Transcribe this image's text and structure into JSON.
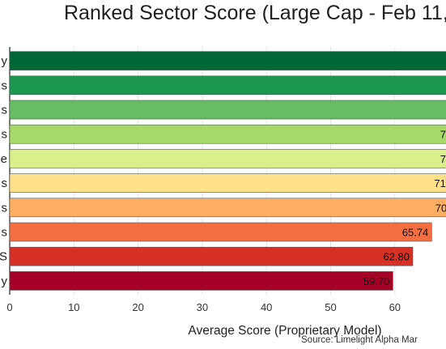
{
  "chart_data": {
    "type": "bar",
    "orientation": "horizontal",
    "title": "Ranked Sector Score (Large Cap - Feb 11,",
    "xlabel": "Average Score (Proprietary Model)",
    "ylabel": "",
    "source": "Source: Limelight Alpha Mar",
    "xlim": [
      0,
      68
    ],
    "xticks": [
      0,
      10,
      20,
      30,
      40,
      50,
      60
    ],
    "grid": true,
    "categories": [
      "y",
      "s",
      "s",
      "s",
      "e",
      "s",
      "s",
      "s",
      "S",
      "y"
    ],
    "values": [
      null,
      null,
      null,
      null,
      null,
      null,
      70.0,
      65.74,
      62.8,
      59.7
    ],
    "value_labels": [
      "",
      "",
      "",
      "7",
      "7",
      "71",
      "70.0",
      "65.74",
      "62.80",
      "59.70"
    ],
    "colors": [
      "#006837",
      "#1a9850",
      "#66bd63",
      "#a6d96a",
      "#d9ef8b",
      "#fee08b",
      "#fdae61",
      "#f46d43",
      "#d73027",
      "#a50026"
    ]
  }
}
